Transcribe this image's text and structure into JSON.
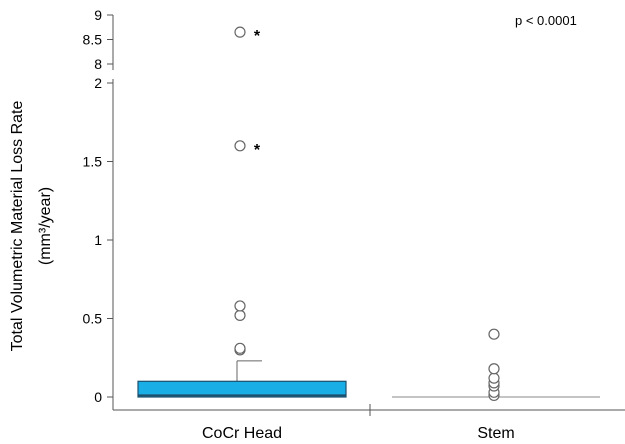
{
  "chart_data": {
    "type": "box",
    "ylabel_line1": "Total Volumetric Material Loss Rate",
    "ylabel_line2": "(mm³/year)",
    "annotation": "p < 0.0001",
    "categories": [
      "CoCr Head",
      "Stem"
    ],
    "y_axis": {
      "broken": true,
      "lower_range": [
        0,
        2
      ],
      "upper_range": [
        8,
        9
      ],
      "lower_ticks": [
        0,
        0.5,
        1,
        1.5,
        2
      ],
      "lower_tick_labels": [
        "0",
        "0.5",
        "1",
        "1.5",
        "2"
      ],
      "upper_ticks": [
        8,
        8.5,
        9
      ],
      "upper_tick_labels": [
        "8",
        "8.5",
        "9"
      ]
    },
    "series": [
      {
        "category": "CoCr Head",
        "q1": 0.0,
        "median": 0.01,
        "q3": 0.1,
        "whisker_low": 0.0,
        "whisker_high": 0.23,
        "outliers": [
          0.3,
          0.31,
          0.52,
          0.58,
          1.6,
          8.65
        ],
        "starred_outliers": [
          1.6,
          8.65
        ],
        "box_color": "#1aaee6"
      },
      {
        "category": "Stem",
        "q1": 0.0,
        "median": 0.0,
        "q3": 0.0,
        "whisker_low": 0.0,
        "whisker_high": 0.0,
        "outliers": [
          0.01,
          0.03,
          0.07,
          0.09,
          0.12,
          0.18,
          0.4
        ],
        "starred_outliers": []
      }
    ],
    "star_symbol": "*",
    "grid": false,
    "legend": "none"
  }
}
